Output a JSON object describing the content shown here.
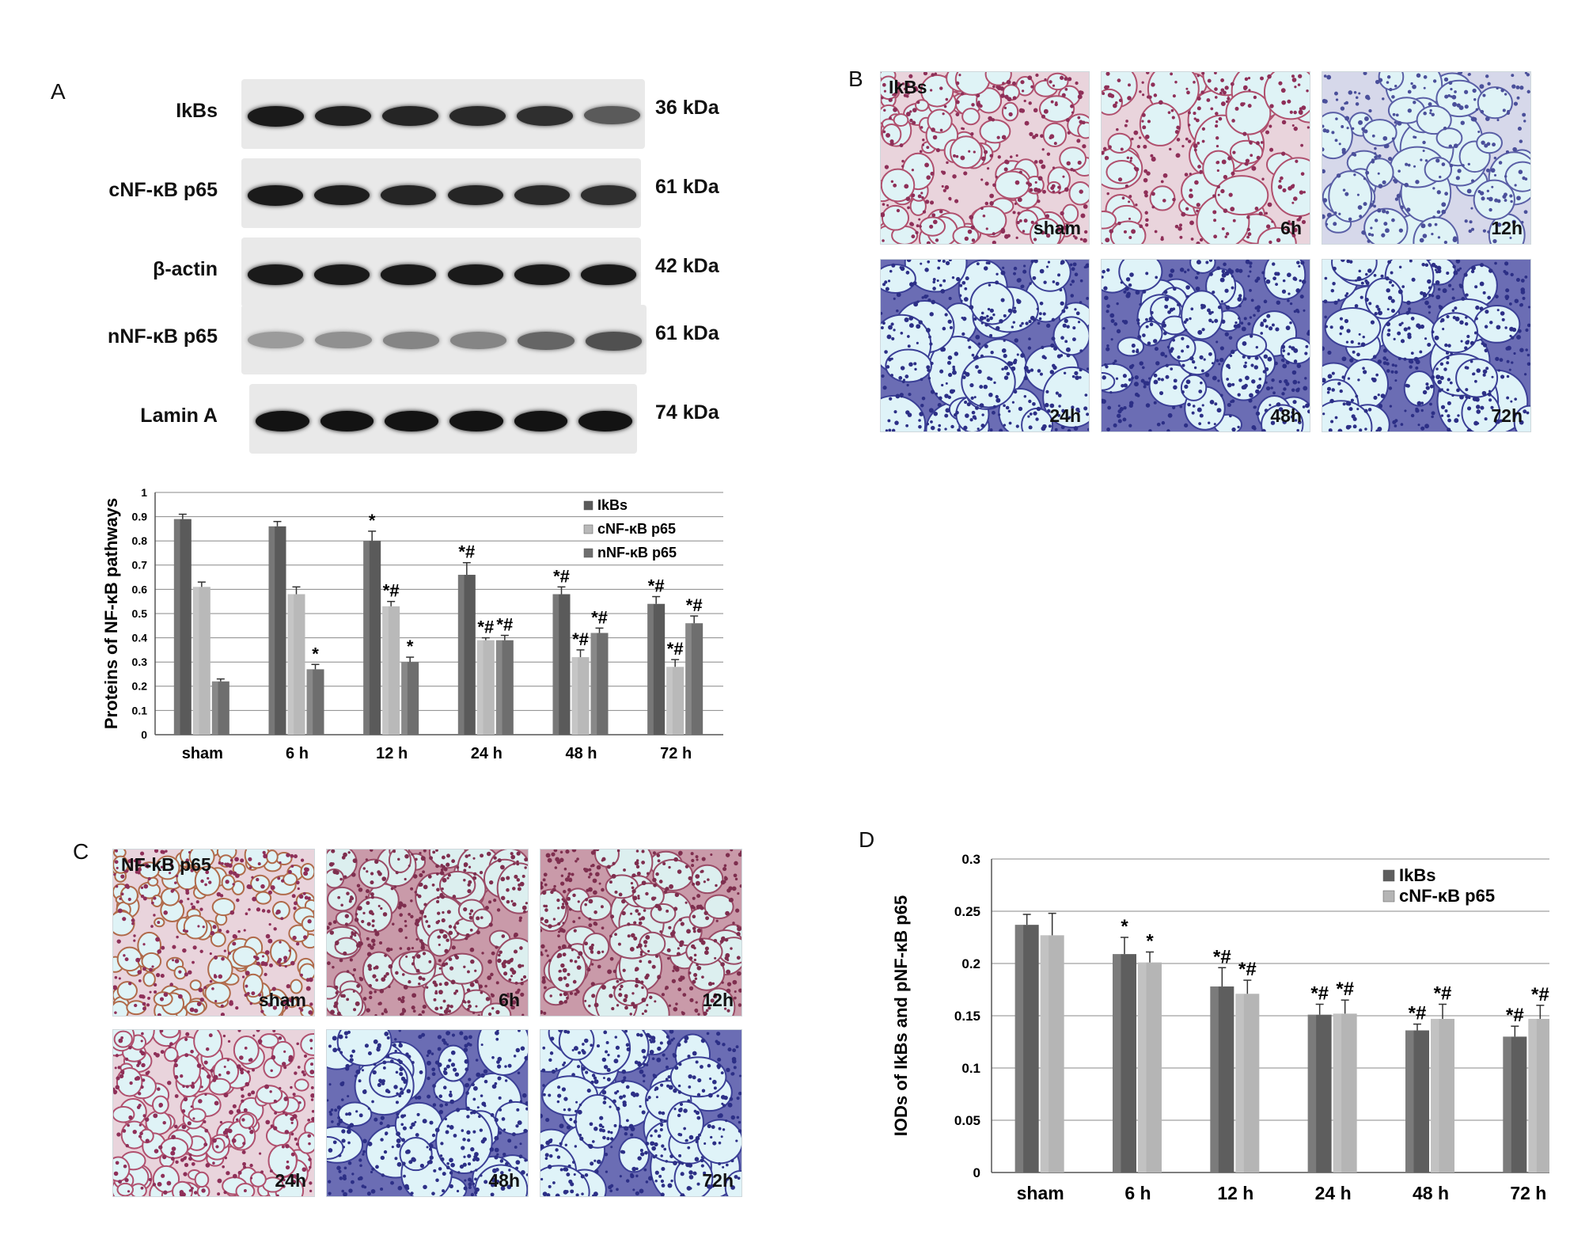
{
  "panels": {
    "A": {
      "letter": "A",
      "blots": [
        {
          "label": "IkBs",
          "kda": "36 kDa",
          "intensity": [
            0.95,
            0.92,
            0.9,
            0.88,
            0.85,
            0.65
          ]
        },
        {
          "label": "cNF-κB p65",
          "kda": "61 kDa",
          "intensity": [
            0.95,
            0.93,
            0.9,
            0.9,
            0.88,
            0.85
          ]
        },
        {
          "label": "β-actin",
          "kda": "42 kDa",
          "intensity": [
            0.95,
            0.95,
            0.95,
            0.95,
            0.95,
            0.95
          ]
        },
        {
          "label": "nNF-κB p65",
          "kda": "61 kDa",
          "intensity": [
            0.35,
            0.4,
            0.45,
            0.45,
            0.6,
            0.7
          ]
        },
        {
          "label": "Lamin A",
          "kda": "74 kDa",
          "intensity": [
            0.98,
            0.98,
            0.98,
            0.98,
            0.98,
            0.98
          ]
        }
      ]
    },
    "B": {
      "letter": "B",
      "stain_label": "IkBs",
      "images": [
        "sham",
        "6h",
        "12h",
        "24h",
        "48h",
        "72h"
      ]
    },
    "C": {
      "letter": "C",
      "stain_label": "NF-kB p65",
      "images": [
        "sham",
        "6h",
        "12h",
        "24h",
        "48h",
        "72h"
      ]
    },
    "D": {
      "letter": "D"
    }
  },
  "chart_data": [
    {
      "id": "A-bar",
      "type": "bar",
      "categories": [
        "sham",
        "6 h",
        "12 h",
        "24 h",
        "48 h",
        "72 h"
      ],
      "ylabel": "Proteins of NF-κB pathways",
      "ylim": [
        0,
        1
      ],
      "yticks": [
        "0",
        "0.1",
        "0.2",
        "0.3",
        "0.4",
        "0.5",
        "0.6",
        "0.7",
        "0.8",
        "0.9",
        "1"
      ],
      "grid": true,
      "legend_position": "top-right",
      "series": [
        {
          "name": "IkBs",
          "color": "#5a5a5a",
          "values": [
            0.89,
            0.86,
            0.8,
            0.66,
            0.58,
            0.54
          ],
          "errors": [
            0.02,
            0.02,
            0.04,
            0.05,
            0.03,
            0.03
          ],
          "marks": [
            "",
            "",
            "*",
            "*#",
            "*#",
            "*#"
          ]
        },
        {
          "name": "cNF-κB p65",
          "color": "#b9b9b9",
          "values": [
            0.61,
            0.58,
            0.53,
            0.39,
            0.32,
            0.28
          ],
          "errors": [
            0.02,
            0.03,
            0.02,
            0.01,
            0.03,
            0.03
          ],
          "marks": [
            "",
            "",
            "*#",
            "*#",
            "*#",
            "*#"
          ]
        },
        {
          "name": "nNF-κB p65",
          "color": "#6e6e6e",
          "values": [
            0.22,
            0.27,
            0.3,
            0.39,
            0.42,
            0.46
          ],
          "errors": [
            0.01,
            0.02,
            0.02,
            0.02,
            0.02,
            0.03
          ],
          "marks": [
            "",
            "*",
            "*",
            "*#",
            "*#",
            "*#"
          ]
        }
      ]
    },
    {
      "id": "D-bar",
      "type": "bar",
      "categories": [
        "sham",
        "6 h",
        "12 h",
        "24 h",
        "48 h",
        "72 h"
      ],
      "ylabel": "IODs of IkBs and pNF-κB p65",
      "ylim": [
        0,
        0.3
      ],
      "yticks": [
        "0",
        "0.05",
        "0.1",
        "0.15",
        "0.2",
        "0.25",
        "0.3"
      ],
      "grid": true,
      "legend_position": "top-right",
      "series": [
        {
          "name": "IkBs",
          "color": "#5e5e5e",
          "values": [
            0.237,
            0.209,
            0.178,
            0.151,
            0.136,
            0.13
          ],
          "errors": [
            0.01,
            0.016,
            0.018,
            0.01,
            0.006,
            0.01
          ],
          "marks": [
            "",
            "*",
            "*#",
            "*#",
            "*#",
            "*#"
          ]
        },
        {
          "name": "cNF-κB p65",
          "color": "#b5b5b5",
          "values": [
            0.227,
            0.201,
            0.171,
            0.152,
            0.147,
            0.147
          ],
          "errors": [
            0.021,
            0.01,
            0.013,
            0.013,
            0.014,
            0.013
          ],
          "marks": [
            "",
            "*",
            "*#",
            "*#",
            "*#",
            "*#"
          ]
        }
      ]
    }
  ]
}
